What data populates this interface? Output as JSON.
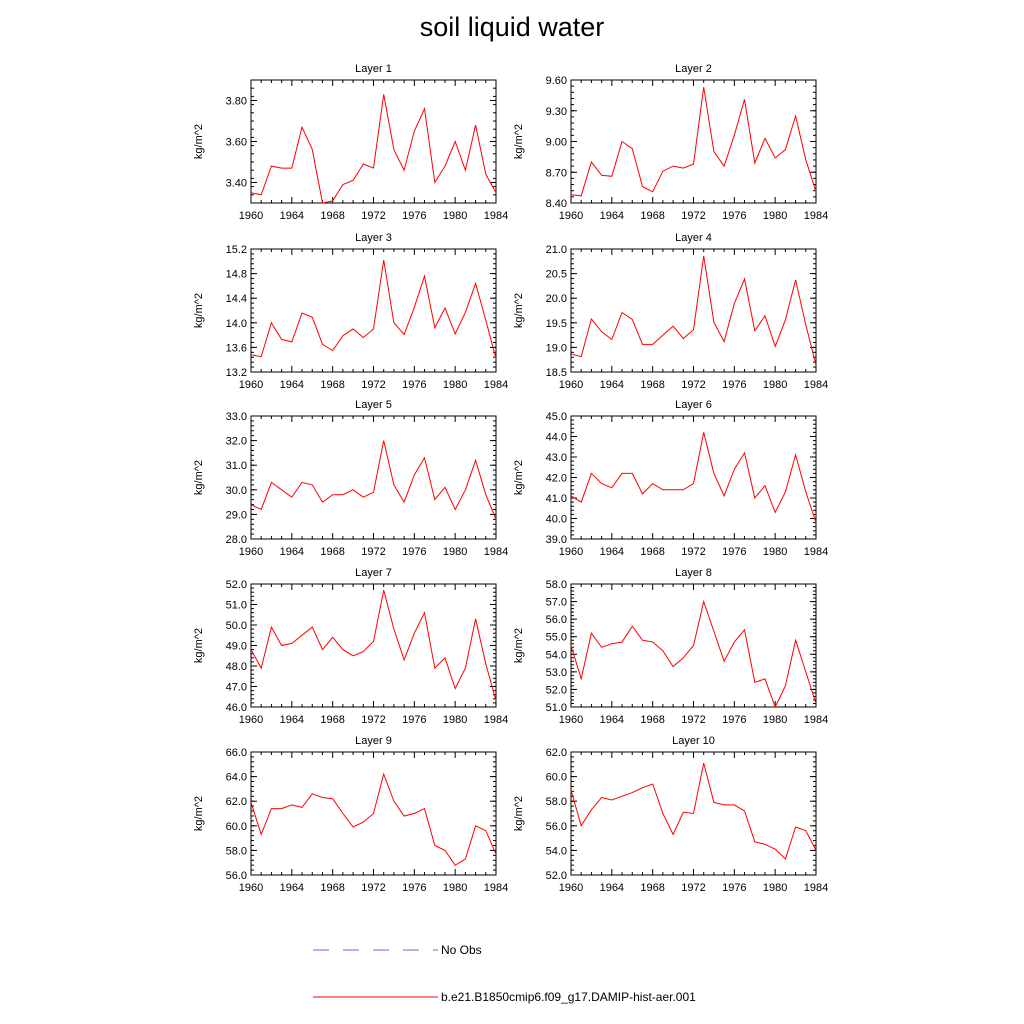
{
  "title": "soil liquid water",
  "legend": {
    "entries": [
      {
        "label": "No Obs",
        "color": "#6a6ad8",
        "style": "dashed"
      },
      {
        "label": "b.e21.B1850cmip6.f09_g17.DAMIP-hist-aer.001",
        "color": "#ff0000",
        "style": "solid"
      }
    ]
  },
  "chart_data": [
    {
      "type": "line",
      "title": "Layer 1",
      "ylabel": "kg/m^2",
      "xlim": [
        1960,
        1984
      ],
      "ylim": [
        3.3,
        3.9
      ],
      "xticks": [
        "1960",
        "1964",
        "1968",
        "1972",
        "1976",
        "1980",
        "1984"
      ],
      "yticks": [
        "3.40",
        "3.60",
        "3.80"
      ],
      "ytick_values": [
        3.4,
        3.6,
        3.8
      ],
      "series": [
        {
          "name": "b.e21.B1850cmip6.f09_g17.DAMIP-hist-aer.001",
          "color": "#ff0000",
          "x": [
            1960,
            1961,
            1962,
            1963,
            1964,
            1965,
            1966,
            1967,
            1968,
            1969,
            1970,
            1971,
            1972,
            1973,
            1974,
            1975,
            1976,
            1977,
            1978,
            1979,
            1980,
            1981,
            1982,
            1983,
            1984
          ],
          "y": [
            3.35,
            3.34,
            3.48,
            3.47,
            3.47,
            3.67,
            3.56,
            3.3,
            3.31,
            3.39,
            3.41,
            3.49,
            3.47,
            3.83,
            3.56,
            3.46,
            3.65,
            3.76,
            3.4,
            3.48,
            3.6,
            3.46,
            3.68,
            3.44,
            3.35
          ]
        }
      ]
    },
    {
      "type": "line",
      "title": "Layer 2",
      "ylabel": "kg/m^2",
      "xlim": [
        1960,
        1984
      ],
      "ylim": [
        8.4,
        9.6
      ],
      "xticks": [
        "1960",
        "1964",
        "1968",
        "1972",
        "1976",
        "1980",
        "1984"
      ],
      "yticks": [
        "8.40",
        "8.70",
        "9.00",
        "9.30",
        "9.60"
      ],
      "ytick_values": [
        8.4,
        8.7,
        9.0,
        9.3,
        9.6
      ],
      "series": [
        {
          "name": "b.e21.B1850cmip6.f09_g17.DAMIP-hist-aer.001",
          "color": "#ff0000",
          "x": [
            1960,
            1961,
            1962,
            1963,
            1964,
            1965,
            1966,
            1967,
            1968,
            1969,
            1970,
            1971,
            1972,
            1973,
            1974,
            1975,
            1976,
            1977,
            1978,
            1979,
            1980,
            1981,
            1982,
            1983,
            1984
          ],
          "y": [
            8.48,
            8.47,
            8.8,
            8.67,
            8.66,
            9.0,
            8.93,
            8.56,
            8.51,
            8.71,
            8.76,
            8.74,
            8.78,
            9.53,
            8.9,
            8.76,
            9.06,
            9.41,
            8.79,
            9.03,
            8.84,
            8.92,
            9.25,
            8.82,
            8.51
          ]
        }
      ]
    },
    {
      "type": "line",
      "title": "Layer 3",
      "ylabel": "kg/m^2",
      "xlim": [
        1960,
        1984
      ],
      "ylim": [
        13.2,
        15.2
      ],
      "xticks": [
        "1960",
        "1964",
        "1968",
        "1972",
        "1976",
        "1980",
        "1984"
      ],
      "yticks": [
        "13.2",
        "13.6",
        "14.0",
        "14.4",
        "14.8",
        "15.2"
      ],
      "ytick_values": [
        13.2,
        13.6,
        14.0,
        14.4,
        14.8,
        15.2
      ],
      "series": [
        {
          "name": "b.e21.B1850cmip6.f09_g17.DAMIP-hist-aer.001",
          "color": "#ff0000",
          "x": [
            1960,
            1961,
            1962,
            1963,
            1964,
            1965,
            1966,
            1967,
            1968,
            1969,
            1970,
            1971,
            1972,
            1973,
            1974,
            1975,
            1976,
            1977,
            1978,
            1979,
            1980,
            1981,
            1982,
            1983,
            1984
          ],
          "y": [
            13.48,
            13.45,
            14.0,
            13.73,
            13.69,
            14.16,
            14.09,
            13.65,
            13.55,
            13.79,
            13.9,
            13.76,
            13.9,
            15.02,
            14.0,
            13.81,
            14.25,
            14.76,
            13.92,
            14.24,
            13.82,
            14.17,
            14.64,
            14.04,
            13.42
          ]
        }
      ]
    },
    {
      "type": "line",
      "title": "Layer 4",
      "ylabel": "kg/m^2",
      "xlim": [
        1960,
        1984
      ],
      "ylim": [
        18.5,
        21.0
      ],
      "xticks": [
        "1960",
        "1964",
        "1968",
        "1972",
        "1976",
        "1980",
        "1984"
      ],
      "yticks": [
        "18.5",
        "19.0",
        "19.5",
        "20.0",
        "20.5",
        "21.0"
      ],
      "ytick_values": [
        18.5,
        19.0,
        19.5,
        20.0,
        20.5,
        21.0
      ],
      "series": [
        {
          "name": "b.e21.B1850cmip6.f09_g17.DAMIP-hist-aer.001",
          "color": "#ff0000",
          "x": [
            1960,
            1961,
            1962,
            1963,
            1964,
            1965,
            1966,
            1967,
            1968,
            1969,
            1970,
            1971,
            1972,
            1973,
            1974,
            1975,
            1976,
            1977,
            1978,
            1979,
            1980,
            1981,
            1982,
            1983,
            1984
          ],
          "y": [
            18.87,
            18.81,
            19.58,
            19.32,
            19.16,
            19.71,
            19.57,
            19.06,
            19.06,
            19.25,
            19.43,
            19.18,
            19.36,
            20.86,
            19.51,
            19.12,
            19.89,
            20.39,
            19.34,
            19.64,
            19.02,
            19.56,
            20.37,
            19.46,
            18.64
          ]
        }
      ]
    },
    {
      "type": "line",
      "title": "Layer 5",
      "ylabel": "kg/m^2",
      "xlim": [
        1960,
        1984
      ],
      "ylim": [
        28.0,
        33.0
      ],
      "xticks": [
        "1960",
        "1964",
        "1968",
        "1972",
        "1976",
        "1980",
        "1984"
      ],
      "yticks": [
        "28.0",
        "29.0",
        "30.0",
        "31.0",
        "32.0",
        "33.0"
      ],
      "ytick_values": [
        28.0,
        29.0,
        30.0,
        31.0,
        32.0,
        33.0
      ],
      "series": [
        {
          "name": "b.e21.B1850cmip6.f09_g17.DAMIP-hist-aer.001",
          "color": "#ff0000",
          "x": [
            1960,
            1961,
            1962,
            1963,
            1964,
            1965,
            1966,
            1967,
            1968,
            1969,
            1970,
            1971,
            1972,
            1973,
            1974,
            1975,
            1976,
            1977,
            1978,
            1979,
            1980,
            1981,
            1982,
            1983,
            1984
          ],
          "y": [
            29.4,
            29.2,
            30.3,
            30.0,
            29.7,
            30.3,
            30.2,
            29.5,
            29.8,
            29.8,
            30.0,
            29.7,
            29.9,
            32.0,
            30.2,
            29.5,
            30.6,
            31.3,
            29.6,
            30.1,
            29.2,
            30.0,
            31.2,
            29.8,
            28.8
          ]
        }
      ]
    },
    {
      "type": "line",
      "title": "Layer 6",
      "ylabel": "kg/m^2",
      "xlim": [
        1960,
        1984
      ],
      "ylim": [
        39.0,
        45.0
      ],
      "xticks": [
        "1960",
        "1964",
        "1968",
        "1972",
        "1976",
        "1980",
        "1984"
      ],
      "yticks": [
        "39.0",
        "40.0",
        "41.0",
        "42.0",
        "43.0",
        "44.0",
        "45.0"
      ],
      "ytick_values": [
        39.0,
        40.0,
        41.0,
        42.0,
        43.0,
        44.0,
        45.0
      ],
      "series": [
        {
          "name": "b.e21.B1850cmip6.f09_g17.DAMIP-hist-aer.001",
          "color": "#ff0000",
          "x": [
            1960,
            1961,
            1962,
            1963,
            1964,
            1965,
            1966,
            1967,
            1968,
            1969,
            1970,
            1971,
            1972,
            1973,
            1974,
            1975,
            1976,
            1977,
            1978,
            1979,
            1980,
            1981,
            1982,
            1983,
            1984
          ],
          "y": [
            41.1,
            40.8,
            42.2,
            41.7,
            41.5,
            42.2,
            42.2,
            41.2,
            41.7,
            41.4,
            41.4,
            41.4,
            41.7,
            44.2,
            42.2,
            41.1,
            42.4,
            43.2,
            41.0,
            41.6,
            40.3,
            41.3,
            43.1,
            41.3,
            39.8
          ]
        }
      ]
    },
    {
      "type": "line",
      "title": "Layer 7",
      "ylabel": "kg/m^2",
      "xlim": [
        1960,
        1984
      ],
      "ylim": [
        46.0,
        52.0
      ],
      "xticks": [
        "1960",
        "1964",
        "1968",
        "1972",
        "1976",
        "1980",
        "1984"
      ],
      "yticks": [
        "46.0",
        "47.0",
        "48.0",
        "49.0",
        "50.0",
        "51.0",
        "52.0"
      ],
      "ytick_values": [
        46.0,
        47.0,
        48.0,
        49.0,
        50.0,
        51.0,
        52.0
      ],
      "series": [
        {
          "name": "b.e21.B1850cmip6.f09_g17.DAMIP-hist-aer.001",
          "color": "#ff0000",
          "x": [
            1960,
            1961,
            1962,
            1963,
            1964,
            1965,
            1966,
            1967,
            1968,
            1969,
            1970,
            1971,
            1972,
            1973,
            1974,
            1975,
            1976,
            1977,
            1978,
            1979,
            1980,
            1981,
            1982,
            1983,
            1984
          ],
          "y": [
            48.8,
            47.9,
            49.9,
            49.0,
            49.1,
            49.5,
            49.9,
            48.8,
            49.4,
            48.8,
            48.5,
            48.7,
            49.2,
            51.7,
            49.8,
            48.3,
            49.6,
            50.6,
            47.9,
            48.4,
            46.9,
            47.9,
            50.3,
            48.1,
            46.3
          ]
        }
      ]
    },
    {
      "type": "line",
      "title": "Layer 8",
      "ylabel": "kg/m^2",
      "xlim": [
        1960,
        1984
      ],
      "ylim": [
        51.0,
        58.0
      ],
      "xticks": [
        "1960",
        "1964",
        "1968",
        "1972",
        "1976",
        "1980",
        "1984"
      ],
      "yticks": [
        "51.0",
        "52.0",
        "53.0",
        "54.0",
        "55.0",
        "56.0",
        "57.0",
        "58.0"
      ],
      "ytick_values": [
        51.0,
        52.0,
        53.0,
        54.0,
        55.0,
        56.0,
        57.0,
        58.0
      ],
      "series": [
        {
          "name": "b.e21.B1850cmip6.f09_g17.DAMIP-hist-aer.001",
          "color": "#ff0000",
          "x": [
            1960,
            1961,
            1962,
            1963,
            1964,
            1965,
            1966,
            1967,
            1968,
            1969,
            1970,
            1971,
            1972,
            1973,
            1974,
            1975,
            1976,
            1977,
            1978,
            1979,
            1980,
            1981,
            1982,
            1983,
            1984
          ],
          "y": [
            54.5,
            52.6,
            55.2,
            54.4,
            54.6,
            54.7,
            55.6,
            54.8,
            54.7,
            54.2,
            53.3,
            53.8,
            54.5,
            57.0,
            55.3,
            53.6,
            54.7,
            55.4,
            52.4,
            52.6,
            51.0,
            52.2,
            54.8,
            53.0,
            51.2
          ]
        }
      ]
    },
    {
      "type": "line",
      "title": "Layer 9",
      "ylabel": "kg/m^2",
      "xlim": [
        1960,
        1984
      ],
      "ylim": [
        56.0,
        66.0
      ],
      "xticks": [
        "1960",
        "1964",
        "1968",
        "1972",
        "1976",
        "1980",
        "1984"
      ],
      "yticks": [
        "56.0",
        "58.0",
        "60.0",
        "62.0",
        "64.0",
        "66.0"
      ],
      "ytick_values": [
        56.0,
        58.0,
        60.0,
        62.0,
        64.0,
        66.0
      ],
      "series": [
        {
          "name": "b.e21.B1850cmip6.f09_g17.DAMIP-hist-aer.001",
          "color": "#ff0000",
          "x": [
            1960,
            1961,
            1962,
            1963,
            1964,
            1965,
            1966,
            1967,
            1968,
            1969,
            1970,
            1971,
            1972,
            1973,
            1974,
            1975,
            1976,
            1977,
            1978,
            1979,
            1980,
            1981,
            1982,
            1983,
            1984
          ],
          "y": [
            61.9,
            59.3,
            61.4,
            61.4,
            61.7,
            61.5,
            62.6,
            62.3,
            62.2,
            61.0,
            59.9,
            60.3,
            61.0,
            64.2,
            62.0,
            60.8,
            61.0,
            61.4,
            58.4,
            58.0,
            56.8,
            57.3,
            60.0,
            59.6,
            57.7
          ]
        }
      ]
    },
    {
      "type": "line",
      "title": "Layer 10",
      "ylabel": "kg/m^2",
      "xlim": [
        1960,
        1984
      ],
      "ylim": [
        52.0,
        62.0
      ],
      "xticks": [
        "1960",
        "1964",
        "1968",
        "1972",
        "1976",
        "1980",
        "1984"
      ],
      "yticks": [
        "52.0",
        "54.0",
        "56.0",
        "58.0",
        "60.0",
        "62.0"
      ],
      "ytick_values": [
        52.0,
        54.0,
        56.0,
        58.0,
        60.0,
        62.0
      ],
      "series": [
        {
          "name": "b.e21.B1850cmip6.f09_g17.DAMIP-hist-aer.001",
          "color": "#ff0000",
          "x": [
            1960,
            1961,
            1962,
            1963,
            1964,
            1965,
            1966,
            1967,
            1968,
            1969,
            1970,
            1971,
            1972,
            1973,
            1974,
            1975,
            1976,
            1977,
            1978,
            1979,
            1980,
            1981,
            1982,
            1983,
            1984
          ],
          "y": [
            58.9,
            56.0,
            57.3,
            58.3,
            58.1,
            58.4,
            58.7,
            59.1,
            59.4,
            57.0,
            55.3,
            57.1,
            57.0,
            61.1,
            57.9,
            57.7,
            57.7,
            57.2,
            54.7,
            54.5,
            54.1,
            53.3,
            55.9,
            55.6,
            54.0
          ]
        }
      ]
    }
  ]
}
